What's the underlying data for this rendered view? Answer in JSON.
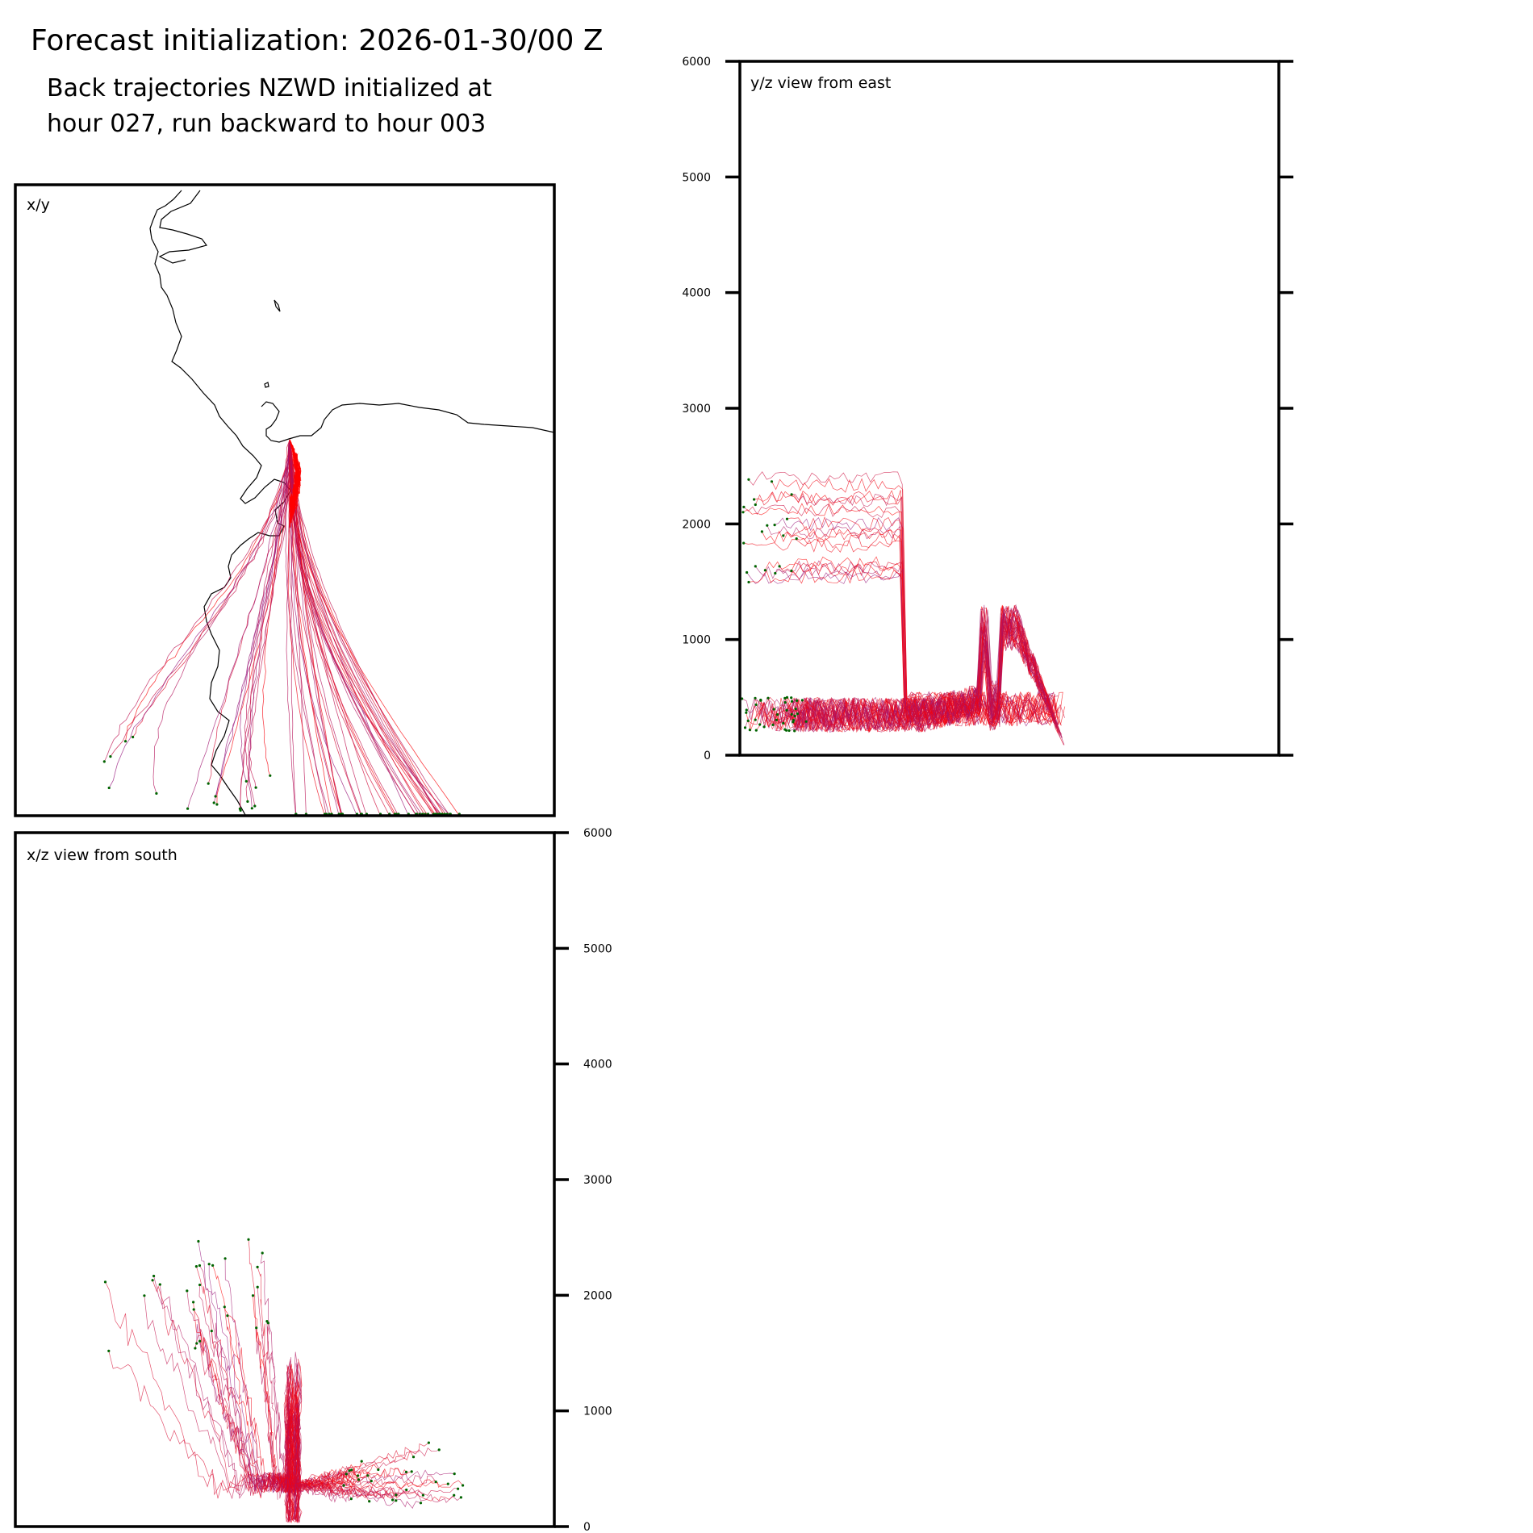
{
  "header": {
    "title": "Forecast initialization: 2026-01-30/00 Z",
    "subtitle_line1": "Back trajectories NZWD initialized at",
    "subtitle_line2": "hour 027, run backward to hour 003"
  },
  "colors": {
    "recent": "#ff0000",
    "older": "#8b1a8b",
    "endpoint": "#006400",
    "coast": "#000000"
  },
  "chart_data": [
    {
      "type": "line",
      "panel": "x/y",
      "label": "x/y",
      "description_note": "",
      "coastline": true,
      "series_count": 60
    },
    {
      "type": "line",
      "panel": "y/z",
      "label": "y/z view from east",
      "ylim": [
        0,
        6000
      ],
      "yticks": [
        "0",
        "1000",
        "2000",
        "3000",
        "4000",
        "5000",
        "6000"
      ],
      "tick_side": "left"
    },
    {
      "type": "line",
      "panel": "x/z",
      "label": "x/z view from south",
      "ylim": [
        0,
        6000
      ],
      "yticks": [
        "0",
        "1000",
        "2000",
        "3000",
        "4000",
        "5000",
        "6000"
      ],
      "tick_side": "right"
    }
  ]
}
